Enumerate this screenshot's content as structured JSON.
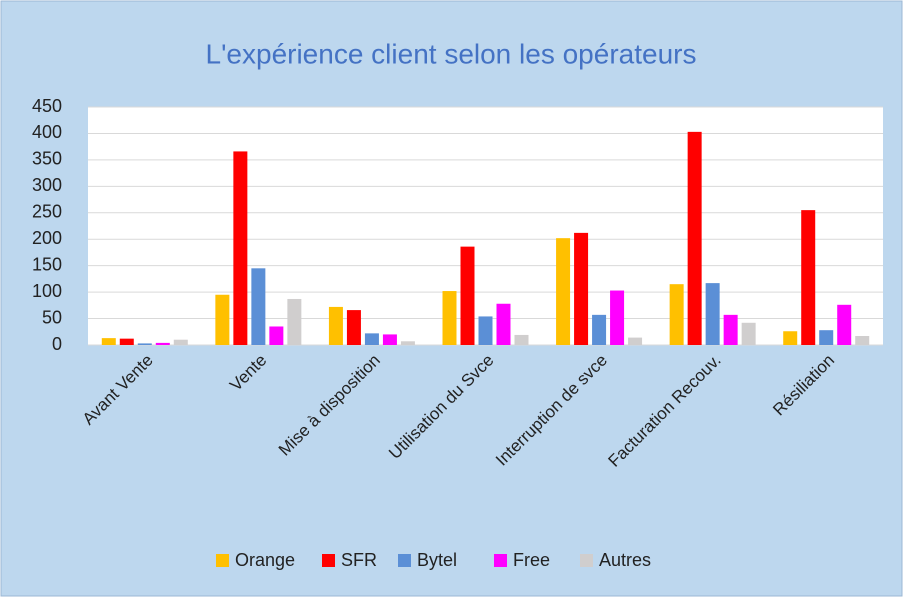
{
  "chart_data": {
    "type": "bar",
    "title": "L'expérience client selon les opérateurs",
    "categories": [
      "Avant Vente",
      "Vente",
      "Mise à disposition",
      "Utilisation du Svce",
      "Interruption de svce",
      "Facturation Recouv.",
      "Résiliation"
    ],
    "series": [
      {
        "name": "Orange",
        "color": "#ffc000",
        "values": [
          13,
          95,
          72,
          102,
          202,
          115,
          26
        ]
      },
      {
        "name": "SFR",
        "color": "#ff0000",
        "values": [
          12,
          366,
          66,
          186,
          212,
          403,
          255
        ]
      },
      {
        "name": "Bytel",
        "color": "#5b8fd6",
        "values": [
          3,
          145,
          22,
          54,
          57,
          117,
          28
        ]
      },
      {
        "name": "Free",
        "color": "#ff00ff",
        "values": [
          4,
          35,
          20,
          78,
          103,
          57,
          76
        ]
      },
      {
        "name": "Autres",
        "color": "#d0cece",
        "values": [
          10,
          87,
          7,
          19,
          14,
          42,
          17
        ]
      }
    ],
    "ylim": [
      0,
      450
    ],
    "yticks": [
      0,
      50,
      100,
      150,
      200,
      250,
      300,
      350,
      400,
      450
    ],
    "grid": true,
    "legend": "bottom"
  }
}
